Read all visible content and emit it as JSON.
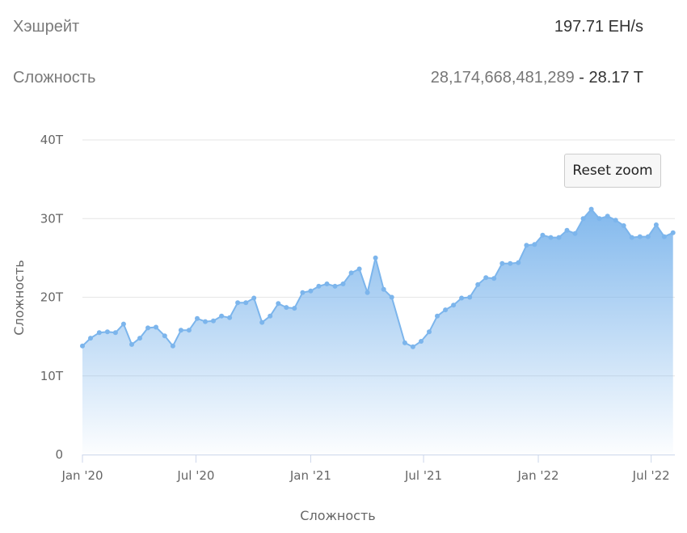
{
  "stats": {
    "hashrate": {
      "label": "Хэшрейт",
      "value": "197.71 EH/s"
    },
    "difficulty": {
      "label": "Сложность",
      "value_full": "28,174,668,481,289",
      "separator": " - ",
      "value_short": "28.17 T"
    }
  },
  "reset_zoom_label": "Reset zoom",
  "chart_data": {
    "type": "area",
    "xlabel": "Сложность",
    "ylabel": "Сложность",
    "ylim": [
      0,
      40
    ],
    "y_unit": "T",
    "y_ticks": [
      {
        "value": 0,
        "label": "0"
      },
      {
        "value": 10,
        "label": "10T"
      },
      {
        "value": 20,
        "label": "20T"
      },
      {
        "value": 30,
        "label": "30T"
      },
      {
        "value": 40,
        "label": "40T"
      }
    ],
    "xlim": [
      "2020-01-01",
      "2022-08-08"
    ],
    "x_ticks": [
      {
        "date": "2020-01-01",
        "label": "Jan '20"
      },
      {
        "date": "2020-07-01",
        "label": "Jul '20"
      },
      {
        "date": "2021-01-01",
        "label": "Jan '21"
      },
      {
        "date": "2021-07-01",
        "label": "Jul '21"
      },
      {
        "date": "2022-01-01",
        "label": "Jan '22"
      },
      {
        "date": "2022-07-01",
        "label": "Jul '22"
      }
    ],
    "grid": true,
    "legend": "none",
    "colors": {
      "line": "#7cb5ec",
      "fill_top": "#7cb5ec",
      "grid": "#e6e6e6",
      "axis": "#ccd6eb"
    },
    "points": [
      [
        "2020-01-01",
        13.8
      ],
      [
        "2020-01-14",
        14.8
      ],
      [
        "2020-01-28",
        15.5
      ],
      [
        "2020-02-10",
        15.6
      ],
      [
        "2020-02-23",
        15.5
      ],
      [
        "2020-03-07",
        16.6
      ],
      [
        "2020-03-20",
        14.0
      ],
      [
        "2020-04-02",
        14.8
      ],
      [
        "2020-04-15",
        16.1
      ],
      [
        "2020-04-28",
        16.2
      ],
      [
        "2020-05-12",
        15.1
      ],
      [
        "2020-05-25",
        13.8
      ],
      [
        "2020-06-07",
        15.8
      ],
      [
        "2020-06-20",
        15.8
      ],
      [
        "2020-07-03",
        17.3
      ],
      [
        "2020-07-16",
        16.9
      ],
      [
        "2020-07-29",
        17.0
      ],
      [
        "2020-08-11",
        17.6
      ],
      [
        "2020-08-24",
        17.4
      ],
      [
        "2020-09-06",
        19.3
      ],
      [
        "2020-09-19",
        19.3
      ],
      [
        "2020-10-02",
        19.9
      ],
      [
        "2020-10-15",
        16.8
      ],
      [
        "2020-10-28",
        17.6
      ],
      [
        "2020-11-10",
        19.2
      ],
      [
        "2020-11-23",
        18.7
      ],
      [
        "2020-12-06",
        18.6
      ],
      [
        "2020-12-19",
        20.6
      ],
      [
        "2021-01-01",
        20.8
      ],
      [
        "2021-01-14",
        21.4
      ],
      [
        "2021-01-27",
        21.7
      ],
      [
        "2021-02-09",
        21.4
      ],
      [
        "2021-02-22",
        21.7
      ],
      [
        "2021-03-07",
        23.1
      ],
      [
        "2021-03-20",
        23.6
      ],
      [
        "2021-04-02",
        20.6
      ],
      [
        "2021-04-15",
        25.0
      ],
      [
        "2021-04-28",
        21.0
      ],
      [
        "2021-05-11",
        20.0
      ],
      [
        "2021-06-01",
        14.2
      ],
      [
        "2021-06-14",
        13.7
      ],
      [
        "2021-06-27",
        14.4
      ],
      [
        "2021-07-10",
        15.6
      ],
      [
        "2021-07-23",
        17.6
      ],
      [
        "2021-08-05",
        18.4
      ],
      [
        "2021-08-18",
        19.0
      ],
      [
        "2021-08-31",
        19.9
      ],
      [
        "2021-09-13",
        20.0
      ],
      [
        "2021-09-26",
        21.6
      ],
      [
        "2021-10-09",
        22.5
      ],
      [
        "2021-10-22",
        22.4
      ],
      [
        "2021-11-04",
        24.3
      ],
      [
        "2021-11-17",
        24.3
      ],
      [
        "2021-11-30",
        24.4
      ],
      [
        "2021-12-13",
        26.6
      ],
      [
        "2021-12-26",
        26.7
      ],
      [
        "2022-01-08",
        27.9
      ],
      [
        "2022-01-21",
        27.6
      ],
      [
        "2022-02-03",
        27.6
      ],
      [
        "2022-02-16",
        28.5
      ],
      [
        "2022-03-01",
        28.1
      ],
      [
        "2022-03-14",
        30.0
      ],
      [
        "2022-03-27",
        31.2
      ],
      [
        "2022-04-09",
        30.0
      ],
      [
        "2022-04-22",
        30.3
      ],
      [
        "2022-05-05",
        29.8
      ],
      [
        "2022-05-18",
        29.1
      ],
      [
        "2022-05-31",
        27.6
      ],
      [
        "2022-06-13",
        27.7
      ],
      [
        "2022-06-26",
        27.7
      ],
      [
        "2022-07-09",
        29.2
      ],
      [
        "2022-07-22",
        27.7
      ],
      [
        "2022-08-05",
        28.2
      ]
    ]
  }
}
